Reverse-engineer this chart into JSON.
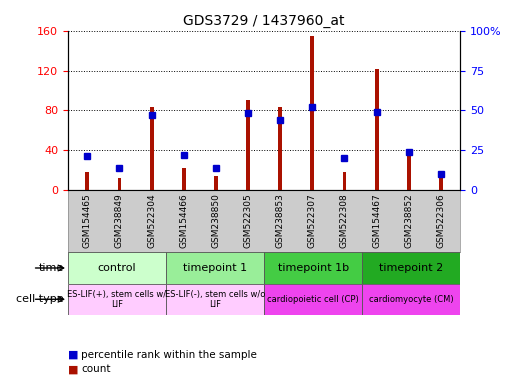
{
  "title": "GDS3729 / 1437960_at",
  "samples": [
    "GSM154465",
    "GSM238849",
    "GSM522304",
    "GSM154466",
    "GSM238850",
    "GSM522305",
    "GSM238853",
    "GSM522307",
    "GSM522308",
    "GSM154467",
    "GSM238852",
    "GSM522306"
  ],
  "counts": [
    18,
    12,
    83,
    22,
    14,
    90,
    83,
    155,
    18,
    122,
    36,
    14
  ],
  "percentiles": [
    21,
    14,
    47,
    22,
    14,
    48,
    44,
    52,
    20,
    49,
    24,
    10
  ],
  "bar_color": "#aa1100",
  "percentile_color": "#0000cc",
  "left_ylim": [
    0,
    160
  ],
  "right_ylim": [
    0,
    100
  ],
  "left_yticks": [
    0,
    40,
    80,
    120,
    160
  ],
  "right_yticks": [
    0,
    25,
    50,
    75,
    100
  ],
  "right_yticklabels": [
    "0",
    "25",
    "50",
    "75",
    "100%"
  ],
  "bar_width": 0.12,
  "group_info": [
    {
      "label": "control",
      "start": 0,
      "end": 3,
      "color": "#ccffcc"
    },
    {
      "label": "timepoint 1",
      "start": 3,
      "end": 6,
      "color": "#99ee99"
    },
    {
      "label": "timepoint 1b",
      "start": 6,
      "end": 9,
      "color": "#44cc44"
    },
    {
      "label": "timepoint 2",
      "start": 9,
      "end": 12,
      "color": "#22aa22"
    }
  ],
  "cell_info": [
    {
      "label": "ES-LIF(+), stem cells w/\nLIF",
      "start": 0,
      "end": 3,
      "color": "#ffccff"
    },
    {
      "label": "ES-LIF(-), stem cells w/o\nLIF",
      "start": 3,
      "end": 6,
      "color": "#ffccff"
    },
    {
      "label": "cardiopoietic cell (CP)",
      "start": 6,
      "end": 9,
      "color": "#ee44ee"
    },
    {
      "label": "cardiomyocyte (CM)",
      "start": 9,
      "end": 12,
      "color": "#ee44ee"
    }
  ],
  "xtick_bg": "#cccccc",
  "legend_items": [
    {
      "label": "count",
      "color": "#aa1100"
    },
    {
      "label": "percentile rank within the sample",
      "color": "#0000cc"
    }
  ]
}
